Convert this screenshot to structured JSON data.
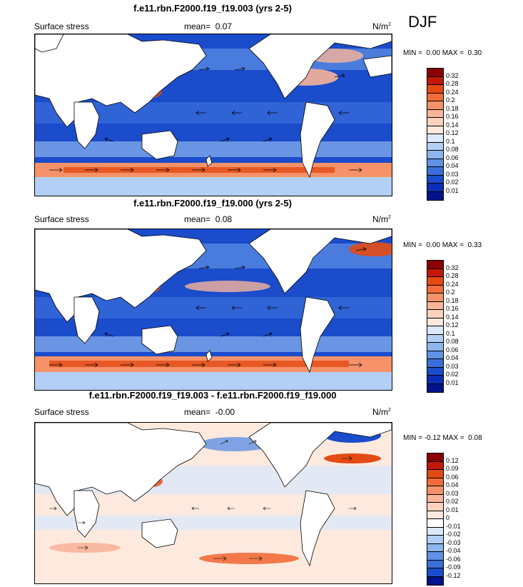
{
  "season": "DJF",
  "panels": [
    {
      "title": "f.e11.rbn.F2000.f19_f19.003 (yrs 2-5)",
      "left_label": "Surface stress",
      "mean_label": "mean=",
      "mean_value": "0.07",
      "units": "N/m",
      "units_sup": "2",
      "min_label": "MIN =",
      "min_value": "0.00",
      "max_label": "MAX =",
      "max_value": "0.30",
      "colorbar": {
        "labels": [
          "0.32",
          "0.28",
          "0.24",
          "0.2",
          "0.18",
          "0.16",
          "0.14",
          "0.12",
          "0.1",
          "0.08",
          "0.06",
          "0.04",
          "0.03",
          "0.02",
          "0.01"
        ],
        "colors": [
          "#8b0000",
          "#c21808",
          "#e34a14",
          "#f26d3a",
          "#f6926a",
          "#f9b49a",
          "#fcd2bf",
          "#fde9dd",
          "#dce9fa",
          "#b3cff5",
          "#8db5ee",
          "#5f91e4",
          "#3a6ed9",
          "#1a4ccc",
          "#0a2fb4",
          "#00138a"
        ]
      }
    },
    {
      "title": "f.e11.rbn.F2000.f19_f19.000 (yrs 2-5)",
      "left_label": "Surface stress",
      "mean_label": "mean=",
      "mean_value": "0.08",
      "units": "N/m",
      "units_sup": "2",
      "min_label": "MIN =",
      "min_value": "0.00",
      "max_label": "MAX =",
      "max_value": "0.33",
      "colorbar": {
        "labels": [
          "0.32",
          "0.28",
          "0.24",
          "0.2",
          "0.18",
          "0.16",
          "0.14",
          "0.12",
          "0.1",
          "0.08",
          "0.06",
          "0.04",
          "0.03",
          "0.02",
          "0.01"
        ],
        "colors": [
          "#8b0000",
          "#c21808",
          "#e34a14",
          "#f26d3a",
          "#f6926a",
          "#f9b49a",
          "#fcd2bf",
          "#fde9dd",
          "#dce9fa",
          "#b3cff5",
          "#8db5ee",
          "#5f91e4",
          "#3a6ed9",
          "#1a4ccc",
          "#0a2fb4",
          "#00138a"
        ]
      }
    },
    {
      "title": "f.e11.rbn.F2000.f19_f19.003 - f.e11.rbn.F2000.f19_f19.000",
      "left_label": "Surface stress",
      "mean_label": "mean=",
      "mean_value": "-0.00",
      "units": "N/m",
      "units_sup": "2",
      "min_label": "MIN =",
      "min_value": "-0.12",
      "max_label": "MAX =",
      "max_value": "0.08",
      "colorbar": {
        "labels": [
          "0.12",
          "0.09",
          "0.06",
          "0.04",
          "0.03",
          "0.02",
          "0.01",
          "0",
          "-0.01",
          "-0.02",
          "-0.03",
          "-0.04",
          "-0.06",
          "-0.09",
          "-0.12"
        ],
        "colors": [
          "#8b0000",
          "#c21808",
          "#e34a14",
          "#f26d3a",
          "#f6926a",
          "#f9b49a",
          "#fcd2bf",
          "#fde9dd",
          "#ffffff",
          "#dce9fa",
          "#b3cff5",
          "#8db5ee",
          "#5f91e4",
          "#3a6ed9",
          "#1a4ccc",
          "#00138a"
        ]
      }
    }
  ],
  "chart_data": [
    {
      "type": "heatmap",
      "title": "f.e11.rbn.F2000.f19_f19.003 (yrs 2-5)",
      "variable": "Surface stress",
      "units": "N/m2",
      "season": "DJF",
      "mean": 0.07,
      "min": 0.0,
      "max": 0.3,
      "contour_levels": [
        0.01,
        0.02,
        0.03,
        0.04,
        0.06,
        0.08,
        0.1,
        0.12,
        0.14,
        0.16,
        0.18,
        0.2,
        0.24,
        0.28,
        0.32
      ],
      "features": "global map with wind-stress vectors; strong stress in Southern Ocean westerlies, North Pacific and North Atlantic storm tracks"
    },
    {
      "type": "heatmap",
      "title": "f.e11.rbn.F2000.f19_f19.000 (yrs 2-5)",
      "variable": "Surface stress",
      "units": "N/m2",
      "season": "DJF",
      "mean": 0.08,
      "min": 0.0,
      "max": 0.33,
      "contour_levels": [
        0.01,
        0.02,
        0.03,
        0.04,
        0.06,
        0.08,
        0.1,
        0.12,
        0.14,
        0.16,
        0.18,
        0.2,
        0.24,
        0.28,
        0.32
      ],
      "features": "global map with wind-stress vectors; strong stress in Southern Ocean westerlies and North Atlantic"
    },
    {
      "type": "heatmap",
      "title": "f.e11.rbn.F2000.f19_f19.003 - f.e11.rbn.F2000.f19_f19.000",
      "variable": "Surface stress",
      "units": "N/m2",
      "season": "DJF",
      "mean": -0.0,
      "min": -0.12,
      "max": 0.08,
      "contour_levels": [
        -0.12,
        -0.09,
        -0.06,
        -0.04,
        -0.03,
        -0.02,
        -0.01,
        0,
        0.01,
        0.02,
        0.03,
        0.04,
        0.06,
        0.09,
        0.12
      ],
      "features": "difference map; mostly small positive/negative anomalies, strong negative in North Atlantic, positive off North America"
    }
  ]
}
